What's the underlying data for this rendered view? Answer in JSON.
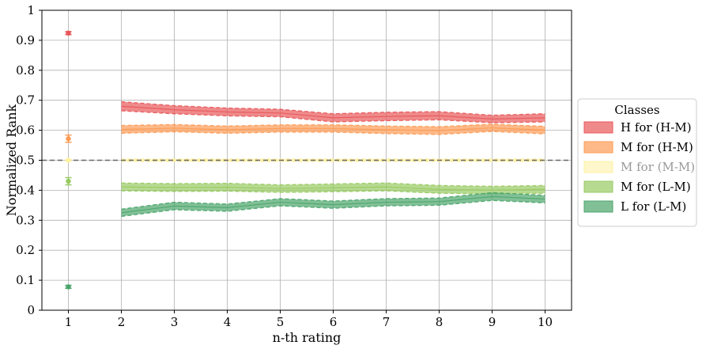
{
  "chart_data": {
    "type": "area",
    "xlabel": "n-th rating",
    "ylabel": "Normalized Rank",
    "x_ticks": [
      "1",
      "2",
      "3",
      "4",
      "5",
      "6",
      "7",
      "8",
      "9",
      "10"
    ],
    "y_ticks": [
      "0",
      "0.1",
      "0.2",
      "0.3",
      "0.4",
      "0.5",
      "0.6",
      "0.7",
      "0.8",
      "0.9",
      "1"
    ],
    "xlim": [
      0.5,
      10.5
    ],
    "ylim": [
      0,
      1
    ],
    "grid": true,
    "reference_line": {
      "y": 0.5,
      "style": "dashed",
      "color": "#666666"
    },
    "legend": {
      "title": "Classes",
      "placement": "right"
    },
    "series": [
      {
        "name": "H for (H-M)",
        "color": "#e8585a",
        "first_point": {
          "x": 1,
          "y": 0.924,
          "err": 0.005
        },
        "x": [
          2,
          3,
          4,
          5,
          6,
          7,
          8,
          9,
          10
        ],
        "lower": [
          0.665,
          0.655,
          0.648,
          0.645,
          0.628,
          0.632,
          0.635,
          0.625,
          0.628
        ],
        "upper": [
          0.695,
          0.682,
          0.674,
          0.67,
          0.655,
          0.66,
          0.662,
          0.65,
          0.655
        ]
      },
      {
        "name": "M for (H-M)",
        "color": "#fd9b55",
        "first_point": {
          "x": 1,
          "y": 0.572,
          "err": 0.012
        },
        "x": [
          2,
          3,
          4,
          5,
          6,
          7,
          8,
          9,
          10
        ],
        "lower": [
          0.59,
          0.595,
          0.59,
          0.594,
          0.594,
          0.589,
          0.586,
          0.596,
          0.588
        ],
        "upper": [
          0.616,
          0.619,
          0.614,
          0.618,
          0.618,
          0.614,
          0.612,
          0.62,
          0.613
        ]
      },
      {
        "name": "M for (M-M)",
        "color": "#fdf0a0",
        "faded": true,
        "first_point": {
          "x": 1,
          "y": 0.5,
          "err": 0.002
        },
        "x": [
          2,
          3,
          4,
          5,
          6,
          7,
          8,
          9,
          10
        ],
        "lower": [
          0.496,
          0.496,
          0.496,
          0.496,
          0.496,
          0.496,
          0.496,
          0.496,
          0.496
        ],
        "upper": [
          0.504,
          0.504,
          0.504,
          0.504,
          0.504,
          0.504,
          0.504,
          0.504,
          0.504
        ]
      },
      {
        "name": "M for (L-M)",
        "color": "#98cb63",
        "first_point": {
          "x": 1,
          "y": 0.43,
          "err": 0.012
        },
        "x": [
          2,
          3,
          4,
          5,
          6,
          7,
          8,
          9,
          10
        ],
        "lower": [
          0.398,
          0.396,
          0.397,
          0.393,
          0.395,
          0.398,
          0.39,
          0.388,
          0.39
        ],
        "upper": [
          0.424,
          0.422,
          0.423,
          0.418,
          0.421,
          0.424,
          0.416,
          0.413,
          0.416
        ]
      },
      {
        "name": "L for (L-M)",
        "color": "#4ca56b",
        "first_point": {
          "x": 1,
          "y": 0.078,
          "err": 0.005
        },
        "x": [
          2,
          3,
          4,
          5,
          6,
          7,
          8,
          9,
          10
        ],
        "lower": [
          0.313,
          0.335,
          0.33,
          0.348,
          0.34,
          0.348,
          0.35,
          0.366,
          0.358
        ],
        "upper": [
          0.337,
          0.36,
          0.354,
          0.372,
          0.364,
          0.372,
          0.374,
          0.392,
          0.383
        ]
      }
    ]
  }
}
